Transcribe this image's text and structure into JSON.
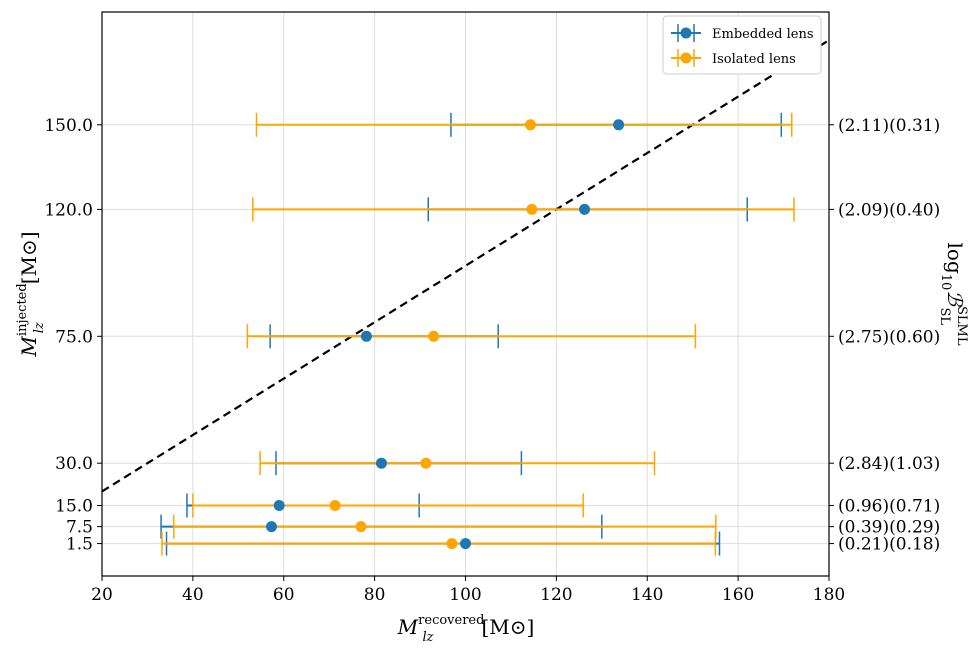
{
  "chart_data": {
    "type": "scatter",
    "xlabel": "M_lz^recovered [M_sun]",
    "xlabel_main": "M",
    "xlabel_sub": "lz",
    "xlabel_sup": "recovered",
    "xlabel_unit": "[M⊙]",
    "ylabel": "M_lz^injected [M_sun]",
    "ylabel_main": "M",
    "ylabel_sub": "lz",
    "ylabel_sup": "injected",
    "ylabel_unit": "[M⊙]",
    "right_ylabel": "log10 B_SL^SLML",
    "right_ylabel_main": "log",
    "right_ylabel_sub10": "10",
    "right_ylabel_B": "ℬ",
    "right_ylabel_sup": "SLML",
    "right_ylabel_sub": "SL",
    "xlim": [
      20,
      180
    ],
    "ylim": [
      -10,
      190
    ],
    "xticks": [
      20,
      40,
      60,
      80,
      100,
      120,
      140,
      160,
      180
    ],
    "xtick_labels": [
      "20",
      "40",
      "60",
      "80",
      "100",
      "120",
      "140",
      "160",
      "180"
    ],
    "yticks": [
      1.5,
      7.5,
      15.0,
      30.0,
      75.0,
      120.0,
      150.0
    ],
    "ytick_labels": [
      "1.5",
      "7.5",
      "15.0",
      "30.0",
      "75.0",
      "120.0",
      "150.0"
    ],
    "grid": true,
    "legend_position": "top-right",
    "series": [
      {
        "name": "Embedded lens",
        "color": "#1f77b4",
        "points": [
          {
            "y": 150.0,
            "x": 133.7,
            "xmin": 96.8,
            "xmax": 169.5
          },
          {
            "y": 120.0,
            "x": 126.2,
            "xmin": 91.8,
            "xmax": 162.0
          },
          {
            "y": 75.0,
            "x": 78.2,
            "xmin": 57.0,
            "xmax": 107.2
          },
          {
            "y": 30.0,
            "x": 81.5,
            "xmin": 58.3,
            "xmax": 112.3
          },
          {
            "y": 15.0,
            "x": 59.0,
            "xmin": 38.7,
            "xmax": 89.8
          },
          {
            "y": 7.5,
            "x": 57.3,
            "xmin": 33.0,
            "xmax": 130.0
          },
          {
            "y": 1.5,
            "x": 100.0,
            "xmin": 34.2,
            "xmax": 155.9
          }
        ]
      },
      {
        "name": "Isolated lens",
        "color": "#ffa500",
        "points": [
          {
            "y": 150.0,
            "x": 114.3,
            "xmin": 54.0,
            "xmax": 171.8
          },
          {
            "y": 120.0,
            "x": 114.6,
            "xmin": 53.2,
            "xmax": 172.3
          },
          {
            "y": 75.0,
            "x": 93.0,
            "xmin": 52.0,
            "xmax": 150.6
          },
          {
            "y": 30.0,
            "x": 91.3,
            "xmin": 54.8,
            "xmax": 141.6
          },
          {
            "y": 15.0,
            "x": 71.3,
            "xmin": 40.0,
            "xmax": 125.9
          },
          {
            "y": 7.5,
            "x": 77.0,
            "xmin": 35.8,
            "xmax": 155.1
          },
          {
            "y": 1.5,
            "x": 97.0,
            "xmin": 33.2,
            "xmax": 155.0
          }
        ]
      }
    ],
    "reference_line": {
      "style": "dashed",
      "color": "#000000",
      "x": [
        20,
        180
      ],
      "y": [
        20,
        180
      ]
    },
    "right_labels": [
      {
        "y": 150.0,
        "text": "(2.11)(0.31)"
      },
      {
        "y": 120.0,
        "text": "(2.09)(0.40)"
      },
      {
        "y": 75.0,
        "text": "(2.75)(0.60)"
      },
      {
        "y": 30.0,
        "text": "(2.84)(1.03)"
      },
      {
        "y": 15.0,
        "text": "(0.96)(0.71)"
      },
      {
        "y": 7.5,
        "text": "(0.39)(0.29)"
      },
      {
        "y": 1.5,
        "text": "(0.21)(0.18)"
      }
    ]
  }
}
